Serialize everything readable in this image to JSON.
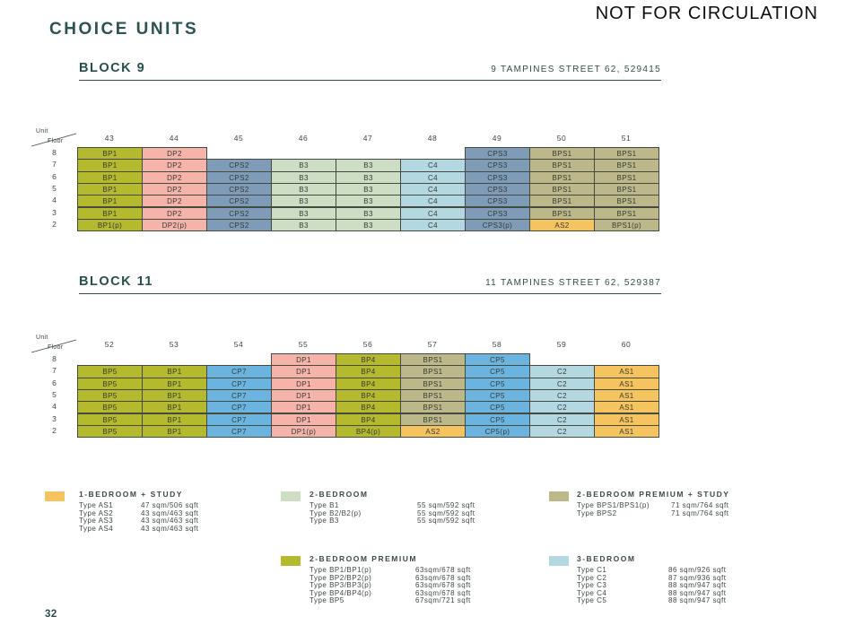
{
  "watermark": "NOT FOR CIRCULATION",
  "page_title": "CHOICE UNITS",
  "page_number": "32",
  "corner": {
    "unit_label": "Unit",
    "floor_label": "Floor"
  },
  "colors": {
    "olive": "#b4b92e",
    "pink": "#f6b3a9",
    "slate": "#7e9cb8",
    "sage": "#cedec4",
    "lightblue": "#b4d8e2",
    "sky": "#6cb4e0",
    "khaki": "#bdb88a",
    "orange": "#f6c45f"
  },
  "label_colors": {
    "BP1": "olive",
    "BP1(p)": "olive",
    "BP4": "olive",
    "BP4(p)": "olive",
    "BP5": "olive",
    "DP1": "pink",
    "DP1(p)": "pink",
    "DP2": "pink",
    "DP2(p)": "pink",
    "CPS2": "slate",
    "CPS3": "slate",
    "CPS3(p)": "slate",
    "B3": "sage",
    "C4": "lightblue",
    "C2": "lightblue",
    "CP7": "sky",
    "CP5": "sky",
    "CP5(p)": "sky",
    "BPS1": "khaki",
    "BPS1(p)": "khaki",
    "AS1": "orange",
    "AS2": "orange"
  },
  "blocks": [
    {
      "name": "BLOCK 9",
      "address": "9 TAMPINES STREET 62, 529415",
      "unit_numbers": [
        "43",
        "44",
        "45",
        "46",
        "47",
        "48",
        "49",
        "50",
        "51"
      ],
      "floors": [
        "8",
        "7",
        "6",
        "5",
        "4",
        "3",
        "2"
      ],
      "grid": [
        [
          "BP1",
          "DP2",
          "",
          "",
          "",
          "",
          "CPS3",
          "BPS1",
          "BPS1"
        ],
        [
          "BP1",
          "DP2",
          "CPS2",
          "B3",
          "B3",
          "C4",
          "CPS3",
          "BPS1",
          "BPS1"
        ],
        [
          "BP1",
          "DP2",
          "CPS2",
          "B3",
          "B3",
          "C4",
          "CPS3",
          "BPS1",
          "BPS1"
        ],
        [
          "BP1",
          "DP2",
          "CPS2",
          "B3",
          "B3",
          "C4",
          "CPS3",
          "BPS1",
          "BPS1"
        ],
        [
          "BP1",
          "DP2",
          "CPS2",
          "B3",
          "B3",
          "C4",
          "CPS3",
          "BPS1",
          "BPS1"
        ],
        [
          "BP1",
          "DP2",
          "CPS2",
          "B3",
          "B3",
          "C4",
          "CPS3",
          "BPS1",
          "BPS1"
        ],
        [
          "BP1(p)",
          "DP2(p)",
          "CPS2",
          "B3",
          "B3",
          "C4",
          "CPS3(p)",
          "AS2",
          "BPS1(p)"
        ]
      ]
    },
    {
      "name": "BLOCK 11",
      "address": "11 TAMPINES STREET 62, 529387",
      "unit_numbers": [
        "52",
        "53",
        "54",
        "55",
        "56",
        "57",
        "58",
        "59",
        "60"
      ],
      "floors": [
        "8",
        "7",
        "6",
        "5",
        "4",
        "3",
        "2"
      ],
      "grid": [
        [
          "",
          "",
          "",
          "DP1",
          "BP4",
          "BPS1",
          "CP5",
          "",
          ""
        ],
        [
          "BP5",
          "BP1",
          "CP7",
          "DP1",
          "BP4",
          "BPS1",
          "CP5",
          "C2",
          "AS1"
        ],
        [
          "BP5",
          "BP1",
          "CP7",
          "DP1",
          "BP4",
          "BPS1",
          "CP5",
          "C2",
          "AS1"
        ],
        [
          "BP5",
          "BP1",
          "CP7",
          "DP1",
          "BP4",
          "BPS1",
          "CP5",
          "C2",
          "AS1"
        ],
        [
          "BP5",
          "BP1",
          "CP7",
          "DP1",
          "BP4",
          "BPS1",
          "CP5",
          "C2",
          "AS1"
        ],
        [
          "BP5",
          "BP1",
          "CP7",
          "DP1",
          "BP4",
          "BPS1",
          "CP5",
          "C2",
          "AS1"
        ],
        [
          "BP5",
          "BP1",
          "CP7",
          "DP1(p)",
          "BP4(p)",
          "AS2",
          "CP5(p)",
          "C2",
          "AS1"
        ]
      ]
    }
  ],
  "legend": [
    {
      "color": "orange",
      "title": "1-BEDROOM + STUDY",
      "items": [
        [
          "Type AS1",
          "47 sqm/506 sqft"
        ],
        [
          "Type AS2",
          "43 sqm/463 sqft"
        ],
        [
          "Type AS3",
          "43 sqm/463 sqft"
        ],
        [
          "Type AS4",
          "43 sqm/463 sqft"
        ]
      ]
    },
    {
      "color": "sage",
      "title": "2-BEDROOM",
      "items": [
        [
          "Type B1",
          "55 sqm/592 sqft"
        ],
        [
          "Type B2/B2(p)",
          "55 sqm/592 sqft"
        ],
        [
          "Type B3",
          "55 sqm/592 sqft"
        ]
      ]
    },
    {
      "color": "khaki",
      "title": "2-BEDROOM PREMIUM + STUDY",
      "items": [
        [
          "Type BPS1/BPS1(p)",
          "71 sqm/764 sqft"
        ],
        [
          "Type BPS2",
          "71 sqm/764 sqft"
        ]
      ]
    },
    {
      "color": "olive",
      "title": "2-BEDROOM PREMIUM",
      "items": [
        [
          "Type BP1/BP1(p)",
          "63sqm/678 sqft"
        ],
        [
          "Type BP2/BP2(p)",
          "63sqm/678 sqft"
        ],
        [
          "Type BP3/BP3(p)",
          "63sqm/678 sqft"
        ],
        [
          "Type BP4/BP4(p)",
          "63sqm/678 sqft"
        ],
        [
          "Type BP5",
          "67sqm/721 sqft"
        ]
      ]
    },
    {
      "color": "lightblue",
      "title": "3-BEDROOM",
      "items": [
        [
          "Type C1",
          "86 sqm/926 sqft"
        ],
        [
          "Type C2",
          "87 sqm/936 sqft"
        ],
        [
          "Type C3",
          "88 sqm/947 sqft"
        ],
        [
          "Type C4",
          "88 sqm/947 sqft"
        ],
        [
          "Type C5",
          "88 sqm/947 sqft"
        ]
      ]
    }
  ]
}
